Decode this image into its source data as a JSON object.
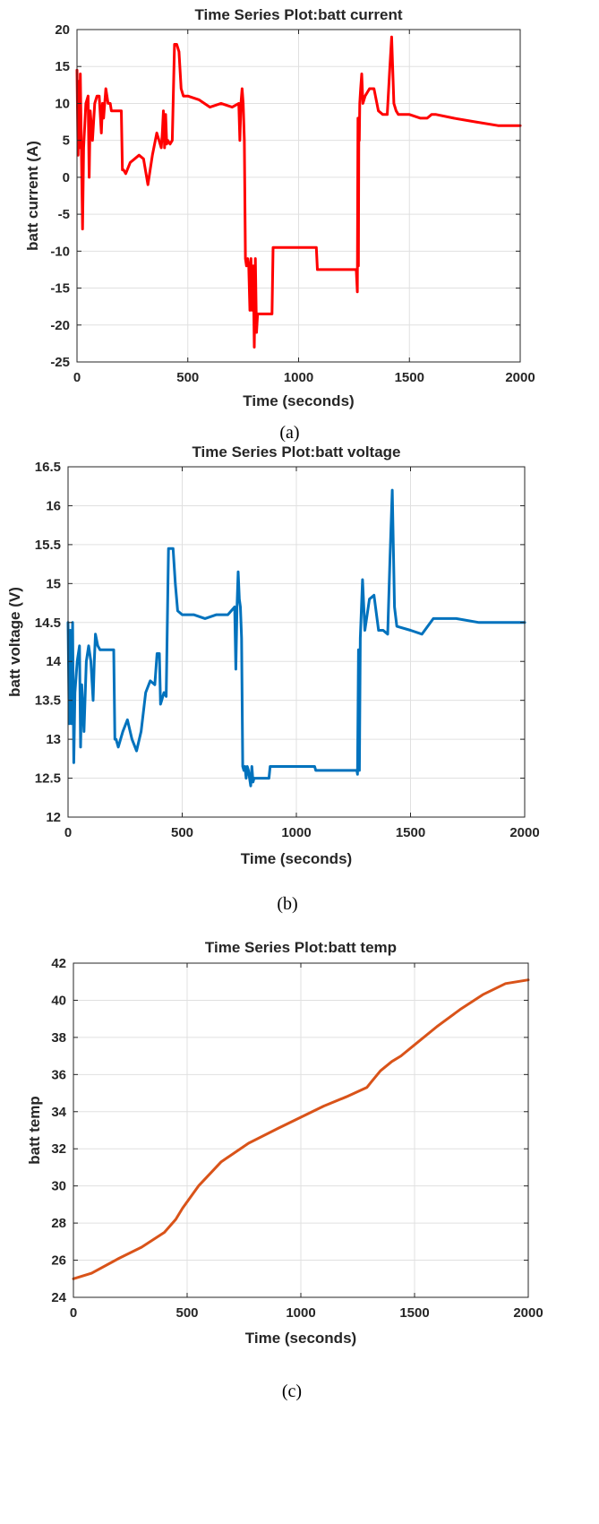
{
  "chart_data": [
    {
      "type": "line",
      "title": "Time Series Plot:batt current",
      "xlabel": "Time (seconds)",
      "ylabel": "batt current (A)",
      "xlim": [
        0,
        2000
      ],
      "ylim": [
        -25,
        20
      ],
      "xticks": [
        0,
        500,
        1000,
        1500,
        2000
      ],
      "yticks": [
        -25,
        -20,
        -15,
        -10,
        -5,
        0,
        5,
        10,
        15,
        20
      ],
      "grid": true,
      "color": "#ff0000",
      "caption": "(a)",
      "series": [
        {
          "x": [
            0,
            5,
            8,
            12,
            15,
            20,
            25,
            30,
            40,
            50,
            55,
            60,
            70,
            80,
            90,
            100,
            110,
            115,
            120,
            130,
            140,
            145,
            150,
            155,
            200,
            205,
            210,
            220,
            240,
            260,
            280,
            300,
            320,
            340,
            360,
            380,
            385,
            390,
            395,
            400,
            405,
            410,
            420,
            430,
            440,
            450,
            460,
            470,
            480,
            500,
            550,
            600,
            650,
            700,
            730,
            735,
            740,
            745,
            750,
            755,
            760,
            765,
            770,
            775,
            780,
            785,
            790,
            795,
            800,
            805,
            810,
            815,
            820,
            825,
            830,
            880,
            885,
            900,
            1000,
            1050,
            1080,
            1085,
            1100,
            1200,
            1260,
            1265,
            1268,
            1270,
            1272,
            1274,
            1276,
            1280,
            1285,
            1290,
            1300,
            1320,
            1340,
            1360,
            1380,
            1400,
            1410,
            1420,
            1430,
            1440,
            1450,
            1500,
            1550,
            1580,
            1600,
            1620,
            1700,
            1800,
            1900,
            1950,
            2000
          ],
          "y": [
            14.5,
            3,
            13,
            4,
            14,
            3,
            -7,
            4,
            10,
            11,
            0,
            9,
            5,
            10,
            11,
            11,
            6,
            10,
            8,
            12,
            10,
            10,
            10,
            9,
            9,
            1,
            1,
            0.5,
            2,
            2.5,
            3,
            2.5,
            -1,
            3,
            6,
            4,
            6,
            9,
            4,
            8.5,
            4.5,
            5,
            4.5,
            5,
            18,
            18,
            17,
            12,
            11,
            11,
            10.5,
            9.5,
            10,
            9.5,
            10,
            5,
            10,
            12,
            10,
            5,
            -11,
            -12,
            -11,
            -12,
            -18,
            -11,
            -18,
            -12,
            -23,
            -11,
            -21,
            -18.5,
            -18.5,
            -18.5,
            -18.5,
            -18.5,
            -9.5,
            -9.5,
            -9.5,
            -9.5,
            -9.5,
            -12.5,
            -12.5,
            -12.5,
            -12.5,
            -15.5,
            8,
            -12,
            8,
            5,
            10,
            12,
            14,
            10,
            11,
            12,
            12,
            9,
            8.5,
            8.5,
            14,
            19,
            10,
            9,
            8.5,
            8.5,
            8,
            8,
            8.5,
            8.5,
            8,
            7.5,
            7,
            7,
            7
          ]
        }
      ]
    },
    {
      "type": "line",
      "title": "Time Series Plot:batt voltage",
      "xlabel": "Time (seconds)",
      "ylabel": "batt voltage (V)",
      "xlim": [
        0,
        2000
      ],
      "ylim": [
        12,
        16.5
      ],
      "xticks": [
        0,
        500,
        1000,
        1500,
        2000
      ],
      "yticks": [
        12,
        12.5,
        13,
        13.5,
        14,
        14.5,
        15,
        15.5,
        16,
        16.5
      ],
      "grid": true,
      "color": "#0072bd",
      "caption": "(b)",
      "series": [
        {
          "x": [
            0,
            5,
            10,
            15,
            20,
            25,
            30,
            40,
            50,
            55,
            60,
            70,
            80,
            90,
            100,
            110,
            115,
            120,
            130,
            140,
            150,
            200,
            205,
            210,
            220,
            240,
            260,
            280,
            300,
            320,
            340,
            360,
            380,
            390,
            400,
            405,
            410,
            420,
            430,
            440,
            450,
            460,
            470,
            480,
            500,
            550,
            600,
            650,
            700,
            730,
            735,
            740,
            745,
            750,
            755,
            760,
            765,
            770,
            775,
            780,
            785,
            790,
            795,
            800,
            805,
            810,
            815,
            820,
            830,
            880,
            885,
            900,
            1000,
            1080,
            1085,
            1200,
            1265,
            1268,
            1272,
            1276,
            1280,
            1290,
            1300,
            1320,
            1340,
            1360,
            1380,
            1400,
            1410,
            1420,
            1430,
            1440,
            1500,
            1550,
            1600,
            1700,
            1800,
            1900,
            2000
          ],
          "y": [
            14.5,
            13.2,
            14.4,
            13.2,
            14.5,
            12.7,
            13.6,
            14,
            14.2,
            12.9,
            13.7,
            13.1,
            14,
            14.2,
            14,
            13.5,
            14,
            14.35,
            14.2,
            14.15,
            14.15,
            14.15,
            13,
            13,
            12.9,
            13.1,
            13.25,
            13,
            12.85,
            13.1,
            13.6,
            13.75,
            13.7,
            14.1,
            14.1,
            13.45,
            13.5,
            13.6,
            13.55,
            15.45,
            15.45,
            15.45,
            15,
            14.65,
            14.6,
            14.6,
            14.55,
            14.6,
            14.6,
            14.7,
            13.9,
            14.7,
            15.15,
            14.8,
            14.7,
            14.3,
            12.65,
            12.6,
            12.65,
            12.5,
            12.65,
            12.6,
            12.5,
            12.4,
            12.65,
            12.45,
            12.5,
            12.5,
            12.5,
            12.5,
            12.65,
            12.65,
            12.65,
            12.65,
            12.6,
            12.6,
            12.6,
            12.55,
            14.15,
            12.6,
            14.3,
            15.05,
            14.4,
            14.8,
            14.85,
            14.4,
            14.4,
            14.35,
            15.3,
            16.2,
            14.7,
            14.45,
            14.4,
            14.35,
            14.55,
            14.55,
            14.5,
            14.5,
            14.5
          ]
        }
      ]
    },
    {
      "type": "line",
      "title": "Time Series Plot:batt temp",
      "xlabel": "Time (seconds)",
      "ylabel": "batt temp",
      "xlim": [
        0,
        2000
      ],
      "ylim": [
        24,
        42
      ],
      "xticks": [
        0,
        500,
        1000,
        1500,
        2000
      ],
      "yticks": [
        24,
        26,
        28,
        30,
        32,
        34,
        36,
        38,
        40,
        42
      ],
      "grid": true,
      "color": "#d95319",
      "caption": "(c)",
      "series": [
        {
          "x": [
            0,
            80,
            200,
            300,
            400,
            450,
            480,
            550,
            650,
            770,
            900,
            1000,
            1100,
            1200,
            1290,
            1310,
            1350,
            1400,
            1440,
            1460,
            1500,
            1600,
            1700,
            1800,
            1900,
            2000
          ],
          "y": [
            25,
            25.3,
            26.1,
            26.7,
            27.5,
            28.2,
            28.8,
            30,
            31.3,
            32.3,
            33.1,
            33.7,
            34.3,
            34.8,
            35.3,
            35.6,
            36.2,
            36.7,
            37,
            37.2,
            37.6,
            38.6,
            39.5,
            40.3,
            40.9,
            41.1
          ]
        }
      ]
    }
  ]
}
